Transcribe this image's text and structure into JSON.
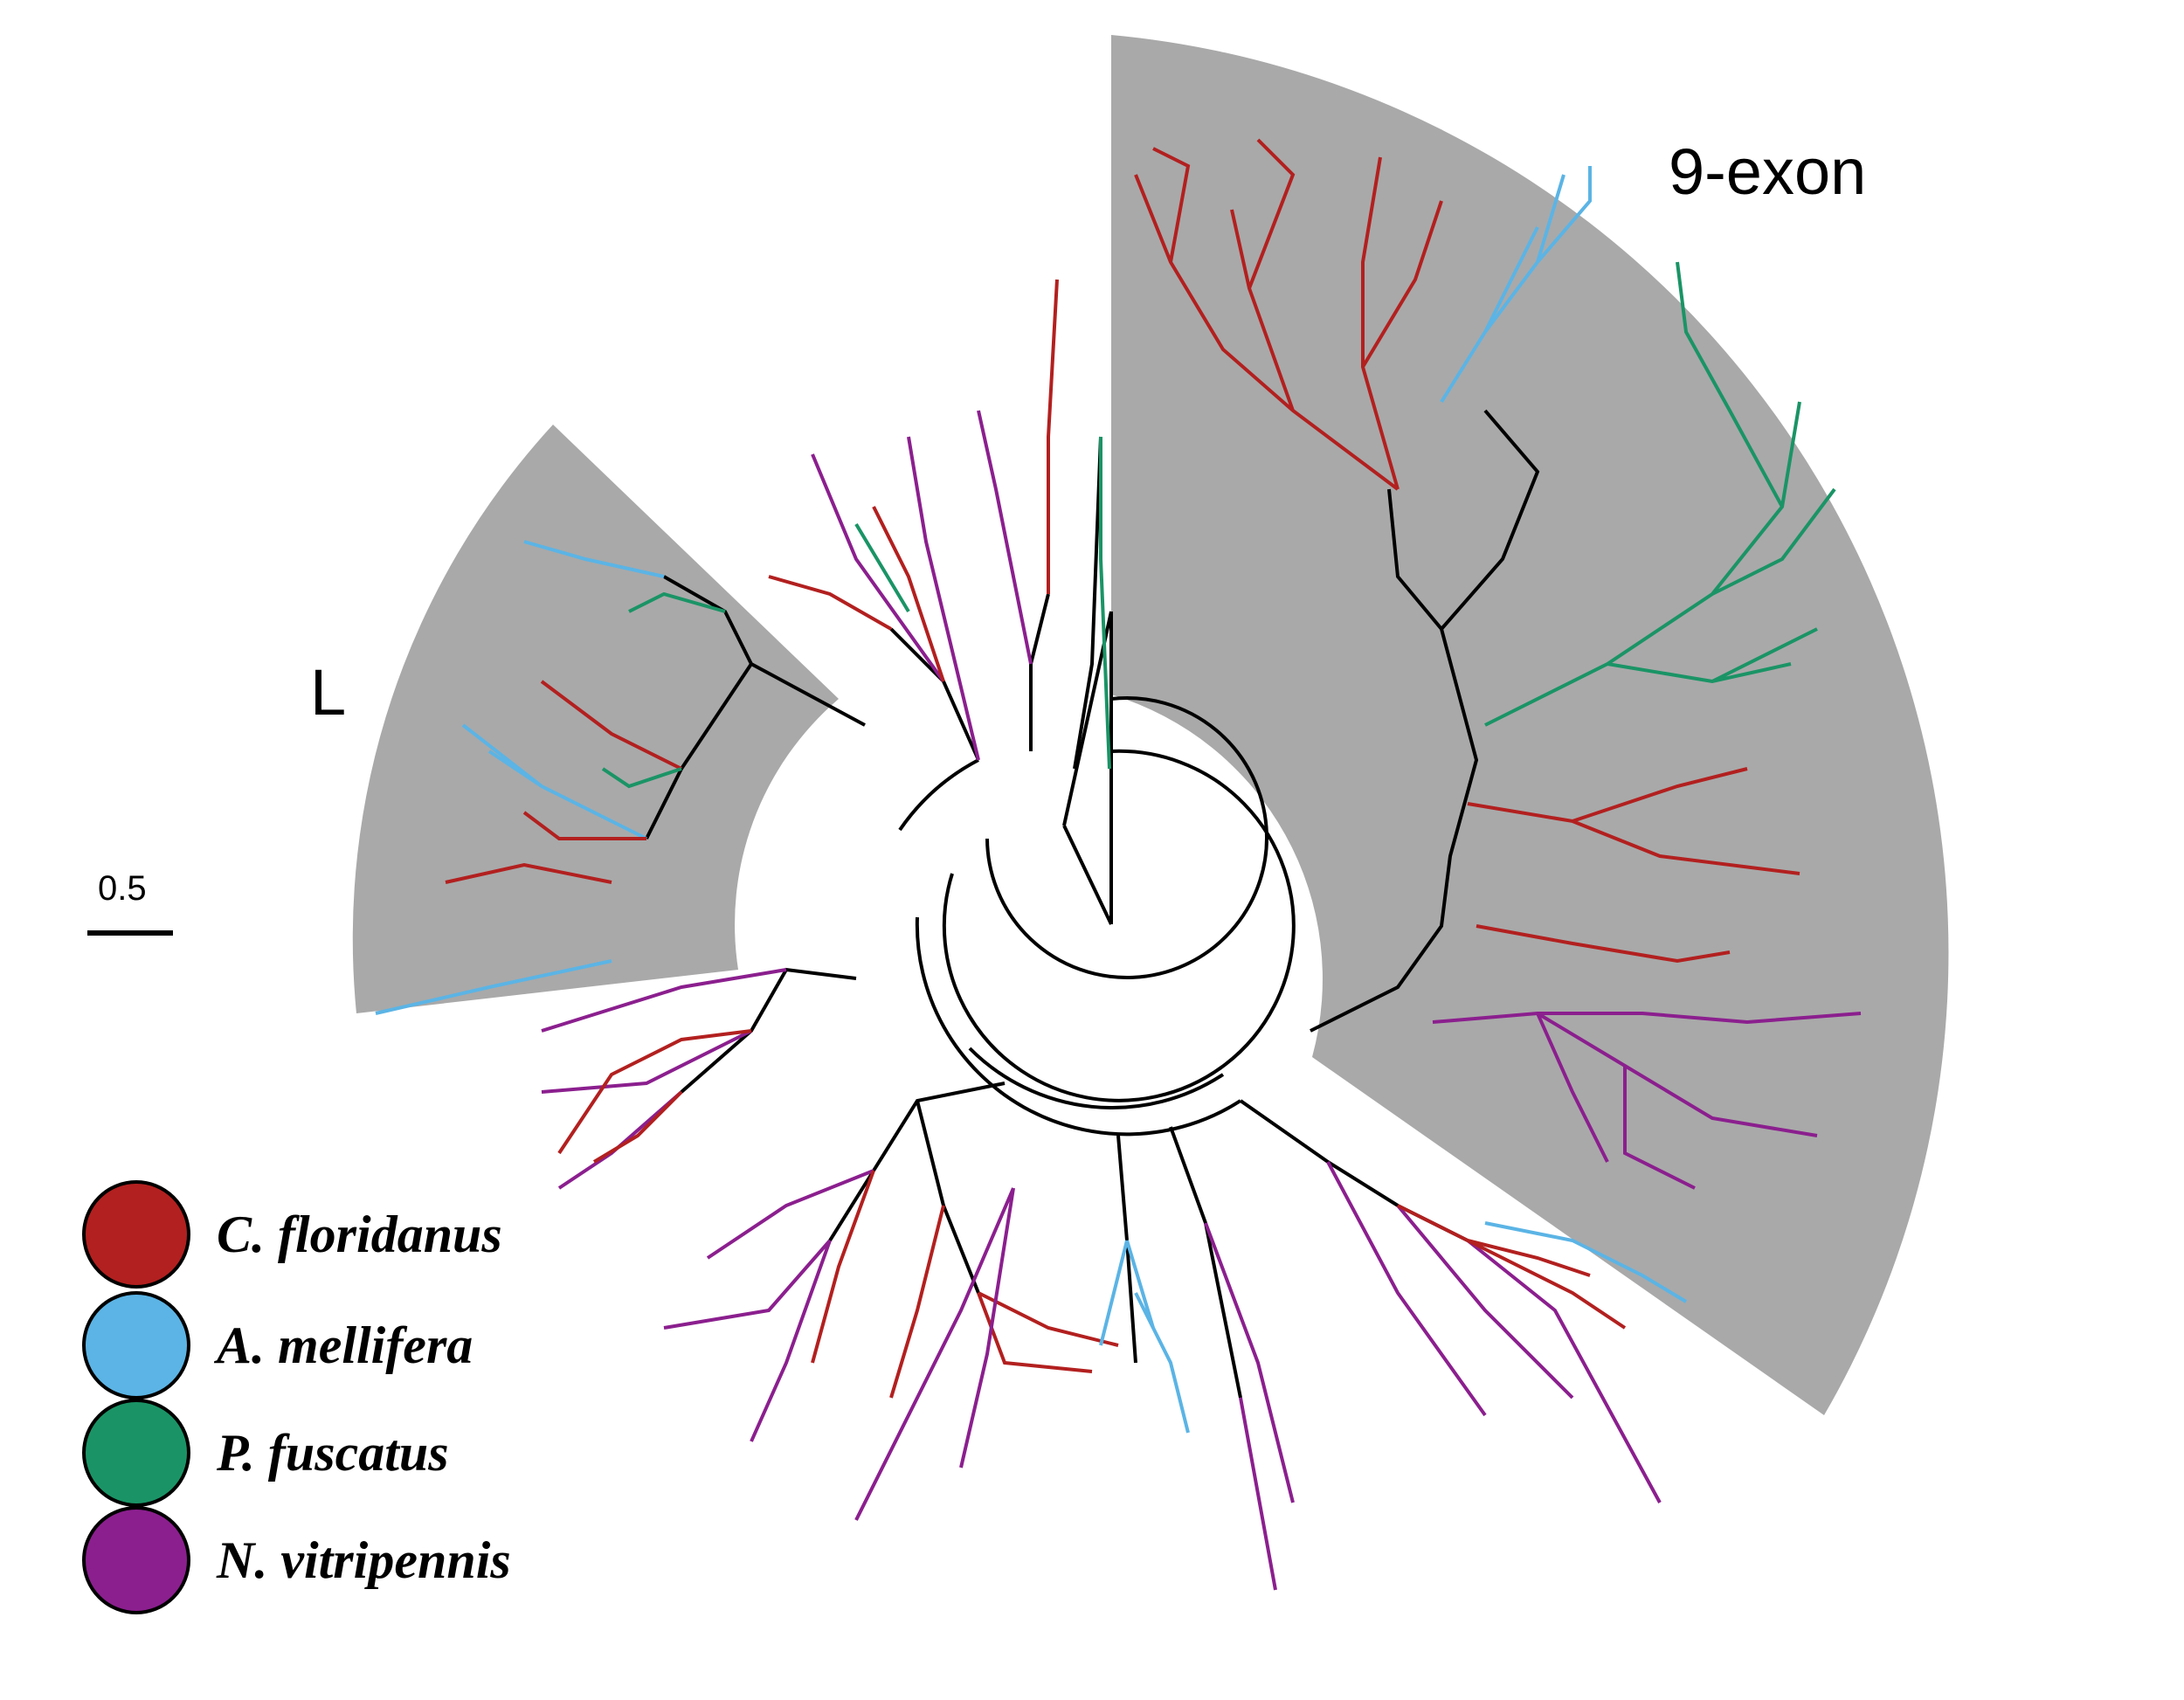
{
  "figure": {
    "clade_labels": [
      {
        "id": "nine-exon",
        "text": "9-exon"
      },
      {
        "id": "L",
        "text": "L"
      }
    ],
    "scale_bar": {
      "label": "0.5",
      "value": 0.5
    },
    "legend": [
      {
        "species": "C. floridanus",
        "color": "#b2201f"
      },
      {
        "species": "A. mellifera",
        "color": "#5bb4e5"
      },
      {
        "species": "P. fuscatus",
        "color": "#1a9466"
      },
      {
        "species": "N. vitripennis",
        "color": "#8b1f8e"
      }
    ],
    "colors": {
      "highlight": "#a9a9a9",
      "backbone": "#000000"
    }
  }
}
